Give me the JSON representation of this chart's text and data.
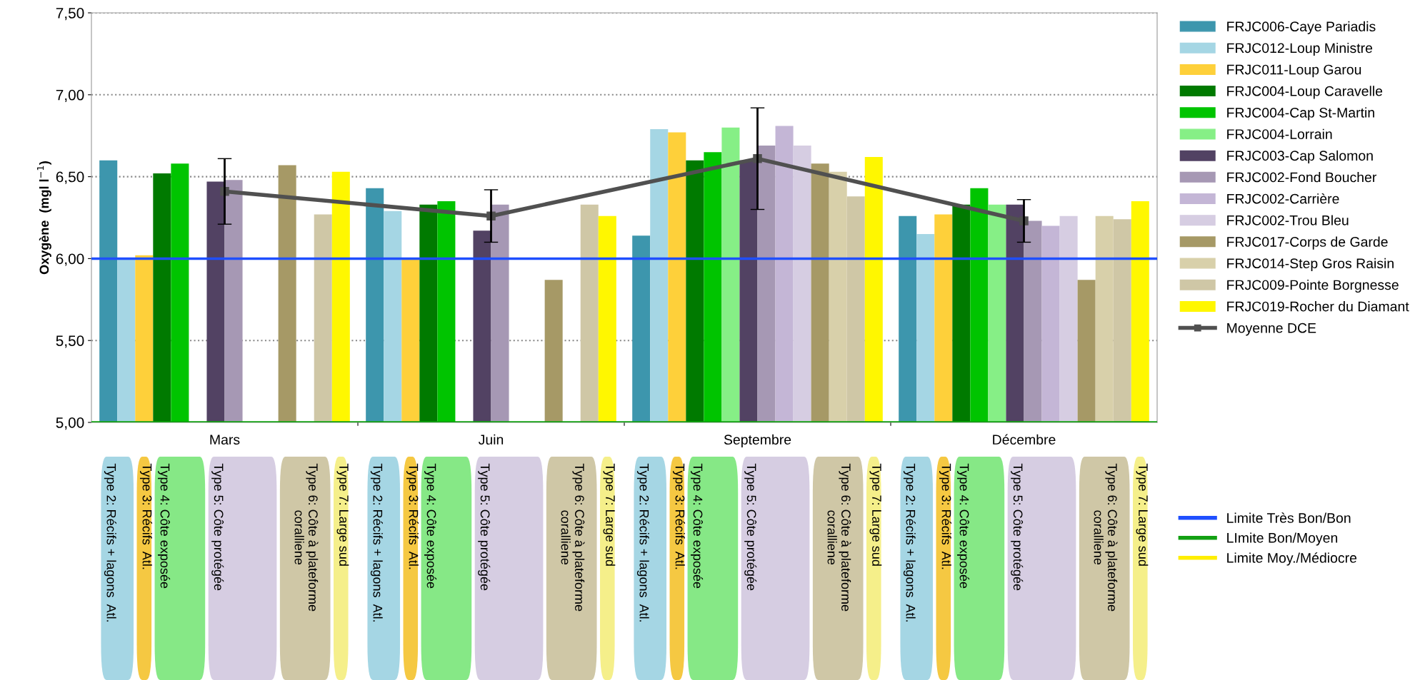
{
  "chart_data": {
    "type": "bar",
    "ylabel": "Oxygène  (mgl l$^{−1}$)",
    "categories": [
      "Mars",
      "Juin",
      "Septembre",
      "Décembre"
    ],
    "ylim": [
      5.0,
      7.5
    ],
    "yticks": [
      {
        "value": 5.0,
        "label": "5,00"
      },
      {
        "value": 5.5,
        "label": "5,50"
      },
      {
        "value": 6.0,
        "label": "6,00"
      },
      {
        "value": 6.5,
        "label": "6,50"
      },
      {
        "value": 7.0,
        "label": "7,00"
      },
      {
        "value": 7.5,
        "label": "7,50"
      }
    ],
    "grid": "y",
    "legend": "right",
    "series": [
      {
        "name": "FRJC006-Caye Pariadis",
        "color": "#3d96ad",
        "values": [
          6.6,
          6.43,
          6.14,
          6.26
        ]
      },
      {
        "name": "FRJC012-Loup Ministre",
        "color": "#a5d6e4",
        "values": [
          6.0,
          6.29,
          6.79,
          6.15
        ]
      },
      {
        "name": "FRJC011-Loup Garou",
        "color": "#fed03a",
        "values": [
          6.02,
          6.0,
          6.77,
          6.27
        ]
      },
      {
        "name": "FRJC004-Loup Caravelle",
        "color": "#007a00",
        "values": [
          6.52,
          6.33,
          6.6,
          6.33
        ]
      },
      {
        "name": "FRJC004-Cap St-Martin",
        "color": "#00c400",
        "values": [
          6.58,
          6.35,
          6.65,
          6.43
        ]
      },
      {
        "name": "FRJC004-Lorrain",
        "color": "#86ef86",
        "values": [
          null,
          null,
          6.8,
          6.33
        ]
      },
      {
        "name": "FRJC003-Cap Salomon",
        "color": "#524263",
        "values": [
          6.47,
          6.17,
          6.6,
          6.33
        ]
      },
      {
        "name": "FRJC002-Fond Boucher",
        "color": "#a698b4",
        "values": [
          6.48,
          6.33,
          6.69,
          6.23
        ]
      },
      {
        "name": "FRJC002-Carrière",
        "color": "#c4b6d6",
        "values": [
          null,
          null,
          6.81,
          6.2
        ]
      },
      {
        "name": "FRJC002-Trou Bleu",
        "color": "#d6cde2",
        "values": [
          null,
          null,
          6.69,
          6.26
        ]
      },
      {
        "name": "FRJC017-Corps de Garde",
        "color": "#a69966",
        "values": [
          6.57,
          5.87,
          6.58,
          5.87
        ]
      },
      {
        "name": "FRJC014-Step Gros Raisin",
        "color": "#d8d0aa",
        "values": [
          null,
          null,
          6.53,
          6.26
        ]
      },
      {
        "name": "FRJC009-Pointe Borgnesse",
        "color": "#cfc7a6",
        "values": [
          6.27,
          6.33,
          6.38,
          6.24
        ]
      },
      {
        "name": "FRJC019-Rocher du Diamant",
        "color": "#fff700",
        "values": [
          6.53,
          6.26,
          6.62,
          6.35
        ]
      },
      {
        "name": "Moyenne DCE",
        "type": "line",
        "color": "#505050",
        "marker": "square",
        "values": [
          6.41,
          6.26,
          6.61,
          6.23
        ],
        "errors": [
          0.2,
          0.16,
          0.31,
          0.13
        ]
      }
    ],
    "ref_lines": [
      {
        "axis": "y",
        "value": 6.0,
        "label": "Limite Très Bon/Bon",
        "color": "#1f4fff"
      },
      {
        "axis": "y",
        "value": 5.0,
        "label": "LImite Bon/Moyen",
        "color": "#12a012"
      },
      {
        "axis": "y",
        "value": null,
        "label": "Limite Moy./Médiocre",
        "color": "#ffee00"
      }
    ],
    "annotations": [
      "Type 2: Récifs + lagons  Atl.",
      "Type 3: Récifs  Atl.",
      "Type 4: Côte exposée",
      "Type 5: Côte protégée",
      "Type 6: Côte à plateforme\ncoralliene",
      "Type 7: Large sud"
    ]
  }
}
